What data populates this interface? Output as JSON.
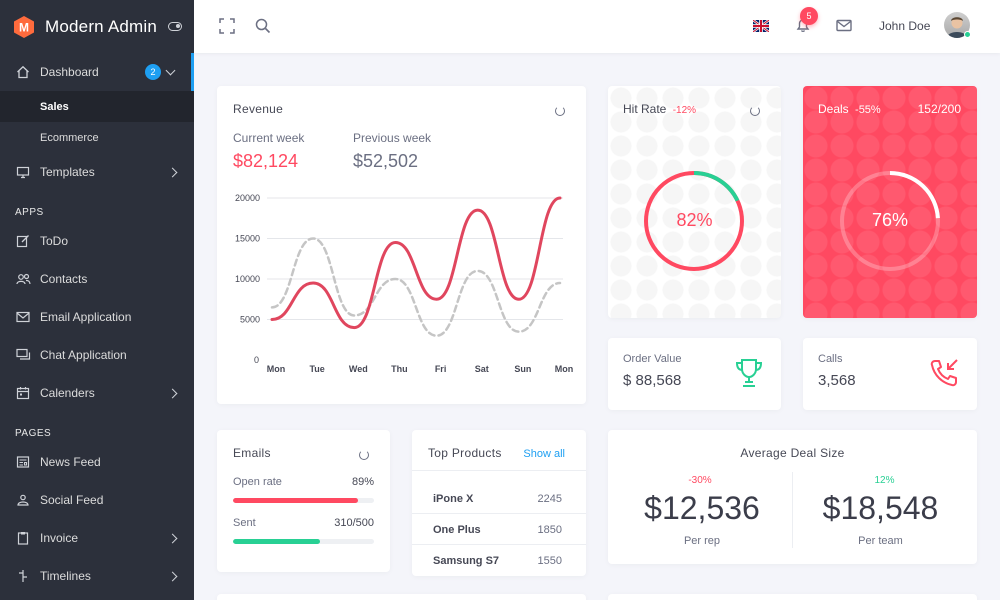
{
  "app": {
    "title": "Modern Admin",
    "logo_letter": "M"
  },
  "sidebar": {
    "dashboard": {
      "label": "Dashboard",
      "badge": "2"
    },
    "sub_items": [
      "Sales",
      "Ecommerce"
    ],
    "templates": "Templates",
    "apps_header": "APPS",
    "apps": [
      "ToDo",
      "Contacts",
      "Email Application",
      "Chat Application",
      "Calenders"
    ],
    "pages_header": "PAGES",
    "pages": [
      "News Feed",
      "Social Feed",
      "Invoice",
      "Timelines"
    ]
  },
  "navbar": {
    "user_name": "John Doe",
    "notifications": "5"
  },
  "revenue": {
    "title": "Revenue",
    "current_label": "Current week",
    "current_value": "$82,124",
    "previous_label": "Previous week",
    "previous_value": "$52,502"
  },
  "chart_data": {
    "type": "line",
    "categories": [
      "Mon",
      "Tue",
      "Wed",
      "Thu",
      "Fri",
      "Sat",
      "Sun",
      "Mon"
    ],
    "series": [
      {
        "values": [
          5000,
          9500,
          4000,
          14500,
          7500,
          18500,
          7500,
          20000
        ],
        "color": "#e0465e"
      },
      {
        "values": [
          6500,
          15000,
          5500,
          10000,
          3000,
          11000,
          3500,
          9500
        ],
        "color": "#c5c5c5",
        "dashed": true
      }
    ],
    "yticks": [
      "20000",
      "15000",
      "10000",
      "5000",
      "0"
    ],
    "ylim": [
      0,
      20000
    ]
  },
  "hit_rate": {
    "title": "Hit Rate",
    "change": "-12%",
    "value": "82%",
    "percent": 82
  },
  "deals": {
    "title": "Deals",
    "change": "-55%",
    "count": "152/200",
    "value": "76%",
    "percent": 76
  },
  "order_value": {
    "label": "Order Value",
    "value": "$ 88,568"
  },
  "calls": {
    "label": "Calls",
    "value": "3,568"
  },
  "emails": {
    "title": "Emails",
    "open_rate_label": "Open rate",
    "open_rate_value": "89%",
    "open_rate_percent": 89,
    "sent_label": "Sent",
    "sent_value": "310/500",
    "sent_percent": 62
  },
  "top_products": {
    "title": "Top Products",
    "show_all": "Show all",
    "rows": [
      {
        "name": "iPone X",
        "value": "2245"
      },
      {
        "name": "One Plus",
        "value": "1850"
      },
      {
        "name": "Samsung S7",
        "value": "1550"
      }
    ]
  },
  "avg_deal": {
    "title": "Average Deal Size",
    "left": {
      "change": "-30%",
      "value": "$12,536",
      "label": "Per rep"
    },
    "right": {
      "change": "12%",
      "value": "$18,548",
      "label": "Per team"
    }
  },
  "colors": {
    "red": "#ff4961",
    "green": "#28d094",
    "blue": "#1e9ff2",
    "sidebar": "#2c303b"
  }
}
